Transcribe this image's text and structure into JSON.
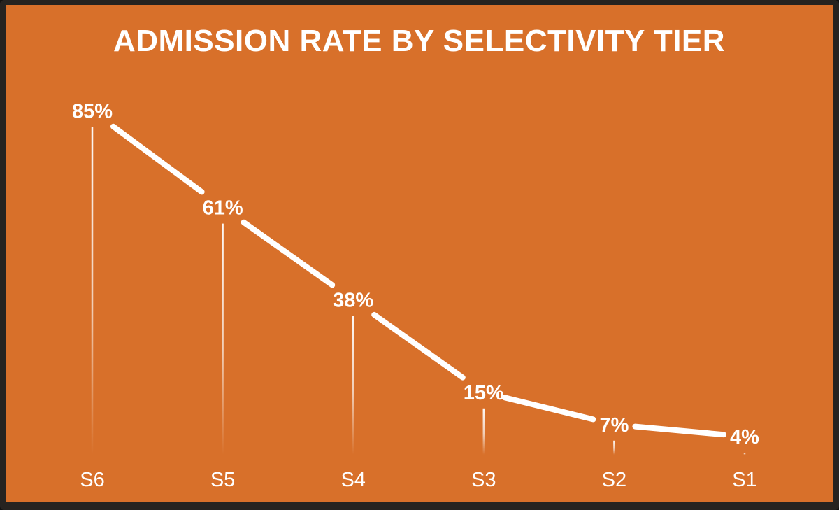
{
  "title": "ADMISSION RATE BY SELECTIVITY TIER",
  "colors": {
    "background": "#d8702a",
    "border": "#262320",
    "line": "#ffffff",
    "text": "#ffffff"
  },
  "chart_data": {
    "type": "line",
    "title": "ADMISSION RATE BY SELECTIVITY TIER",
    "categories": [
      "S6",
      "S5",
      "S4",
      "S3",
      "S2",
      "S1"
    ],
    "values": [
      85,
      61,
      38,
      15,
      7,
      4
    ],
    "data_labels": [
      "85%",
      "61%",
      "38%",
      "15%",
      "7%",
      "4%"
    ],
    "xlabel": "",
    "ylabel": "",
    "ylim": [
      0,
      100
    ],
    "grid": false,
    "legend": false,
    "x_axis_visible": false,
    "y_axis_visible": false,
    "marker": "none",
    "label_position": "above-point",
    "drop_lines": true,
    "series_color": "#ffffff",
    "label_color": "#ffffff"
  }
}
